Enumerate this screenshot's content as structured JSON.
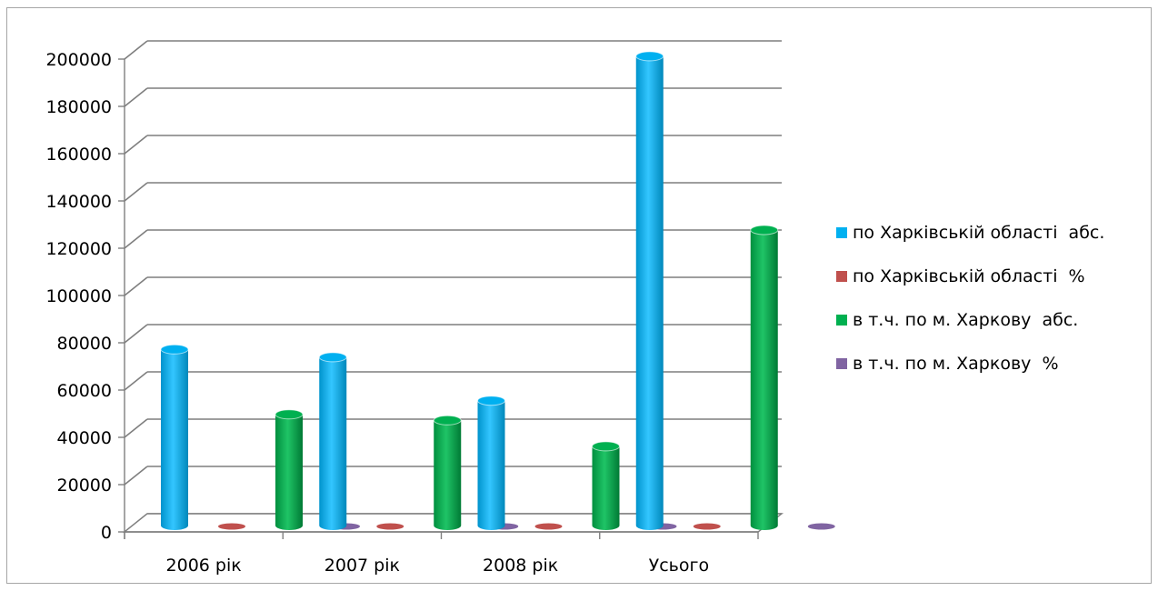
{
  "chart_data": {
    "type": "bar",
    "categories": [
      "2006 рік",
      "2007 рік",
      "2008 рік",
      "Усього"
    ],
    "series": [
      {
        "name": "по Харківській області  абс.",
        "values": [
          74500,
          71200,
          52800,
          198500
        ],
        "color": "#00b0f0"
      },
      {
        "name": "по Харківській області  %",
        "values": [
          0,
          0,
          0,
          0
        ],
        "color": "#c0504d"
      },
      {
        "name": "в т.ч. по м. Харкову  абс.",
        "values": [
          47000,
          44500,
          33500,
          125000
        ],
        "color": "#00b050"
      },
      {
        "name": "в т.ч. по м. Харкову  %",
        "values": [
          0,
          0,
          0,
          0
        ],
        "color": "#8064a2"
      }
    ],
    "yticks": [
      "0",
      "20000",
      "40000",
      "60000",
      "80000",
      "100000",
      "120000",
      "140000",
      "160000",
      "180000",
      "200000"
    ],
    "ylim": [
      0,
      200000
    ],
    "grid": true,
    "legend_position": "right",
    "title": "",
    "xlabel": "",
    "ylabel": ""
  }
}
